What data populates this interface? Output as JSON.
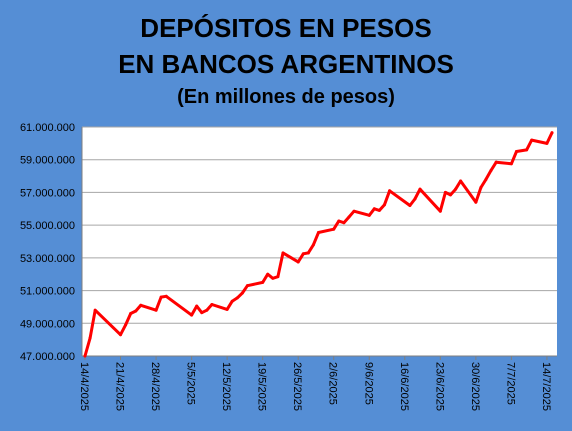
{
  "title": {
    "line1": "DEPÓSITOS EN PESOS",
    "line2": "EN BANCOS ARGENTINOS",
    "line3": "(En millones de pesos)"
  },
  "colors": {
    "background": "#558ED5",
    "plot_background": "#FFFFFF",
    "line": "#FF0000",
    "grid": "#A6A6A6"
  },
  "chart_data": {
    "type": "line",
    "title": "DEPÓSITOS EN PESOS EN BANCOS ARGENTINOS (En millones de pesos)",
    "xlabel": "",
    "ylabel": "",
    "ylim": [
      47000000,
      61000000
    ],
    "grid": true,
    "legend": "none",
    "y_ticks": [
      {
        "value": 47000000,
        "label": "47.000.000"
      },
      {
        "value": 49000000,
        "label": "49.000.000"
      },
      {
        "value": 51000000,
        "label": "51.000.000"
      },
      {
        "value": 53000000,
        "label": "53.000.000"
      },
      {
        "value": 55000000,
        "label": "55.000.000"
      },
      {
        "value": 57000000,
        "label": "57.000.000"
      },
      {
        "value": 59000000,
        "label": "59.000.000"
      },
      {
        "value": 61000000,
        "label": "61.000.000"
      }
    ],
    "x_ticks": [
      "14/4/2025",
      "21/4/2025",
      "28/4/2025",
      "5/5/2025",
      "12/5/2025",
      "19/5/2025",
      "26/5/2025",
      "2/6/2025",
      "9/6/2025",
      "16/6/2025",
      "23/6/2025",
      "30/6/2025",
      "7/7/2025",
      "14/7/2025"
    ],
    "x_range": [
      "14/4/2025",
      "15/7/2025"
    ],
    "x": [
      "14/4/2025",
      "15/4/2025",
      "16/4/2025",
      "21/4/2025",
      "22/4/2025",
      "23/4/2025",
      "24/4/2025",
      "25/4/2025",
      "28/4/2025",
      "29/4/2025",
      "30/4/2025",
      "5/5/2025",
      "6/5/2025",
      "7/5/2025",
      "8/5/2025",
      "9/5/2025",
      "12/5/2025",
      "13/5/2025",
      "14/5/2025",
      "15/5/2025",
      "16/5/2025",
      "19/5/2025",
      "20/5/2025",
      "21/5/2025",
      "22/5/2025",
      "23/5/2025",
      "26/5/2025",
      "27/5/2025",
      "28/5/2025",
      "29/5/2025",
      "30/5/2025",
      "2/6/2025",
      "3/6/2025",
      "4/6/2025",
      "5/6/2025",
      "6/6/2025",
      "9/6/2025",
      "10/6/2025",
      "11/6/2025",
      "12/6/2025",
      "13/6/2025",
      "17/6/2025",
      "18/6/2025",
      "19/6/2025",
      "23/6/2025",
      "24/6/2025",
      "25/6/2025",
      "26/6/2025",
      "27/6/2025",
      "30/6/2025",
      "1/7/2025",
      "2/7/2025",
      "3/7/2025",
      "4/7/2025",
      "7/7/2025",
      "8/7/2025",
      "10/7/2025",
      "11/7/2025",
      "14/7/2025",
      "15/7/2025"
    ],
    "series": [
      {
        "name": "",
        "values": [
          47000000,
          48100000,
          49800000,
          48300000,
          48900000,
          49600000,
          49750000,
          50100000,
          49800000,
          50600000,
          50650000,
          49500000,
          50050000,
          49650000,
          49800000,
          50150000,
          49850000,
          50350000,
          50550000,
          50850000,
          51300000,
          51500000,
          52000000,
          51750000,
          51850000,
          53300000,
          52750000,
          53250000,
          53300000,
          53800000,
          54550000,
          54750000,
          55250000,
          55150000,
          55500000,
          55850000,
          55600000,
          56000000,
          55900000,
          56250000,
          57100000,
          56200000,
          56600000,
          57200000,
          55850000,
          57000000,
          56850000,
          57200000,
          57700000,
          56400000,
          57300000,
          57800000,
          58350000,
          58850000,
          58750000,
          59500000,
          59600000,
          60200000,
          60000000,
          60650000
        ]
      }
    ]
  }
}
